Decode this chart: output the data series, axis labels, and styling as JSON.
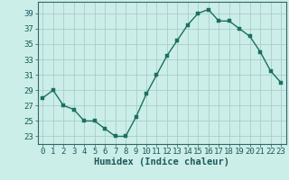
{
  "x": [
    0,
    1,
    2,
    3,
    4,
    5,
    6,
    7,
    8,
    9,
    10,
    11,
    12,
    13,
    14,
    15,
    16,
    17,
    18,
    19,
    20,
    21,
    22,
    23
  ],
  "y": [
    28,
    29,
    27,
    26.5,
    25,
    25,
    24,
    23,
    23,
    25.5,
    28.5,
    31,
    33.5,
    35.5,
    37.5,
    39,
    39.5,
    38,
    38,
    37,
    36,
    34,
    31.5,
    30
  ],
  "line_color": "#1a7060",
  "marker_color": "#1a7060",
  "bg_color": "#cceee8",
  "grid_color": "#aacccc",
  "xlabel": "Humidex (Indice chaleur)",
  "xlim": [
    -0.5,
    23.5
  ],
  "ylim": [
    22,
    40.5
  ],
  "yticks": [
    23,
    25,
    27,
    29,
    31,
    33,
    35,
    37,
    39
  ],
  "xticks": [
    0,
    1,
    2,
    3,
    4,
    5,
    6,
    7,
    8,
    9,
    10,
    11,
    12,
    13,
    14,
    15,
    16,
    17,
    18,
    19,
    20,
    21,
    22,
    23
  ],
  "xlabel_fontsize": 7.5,
  "tick_fontsize": 6.5,
  "line_width": 1.0,
  "marker_size": 2.5
}
